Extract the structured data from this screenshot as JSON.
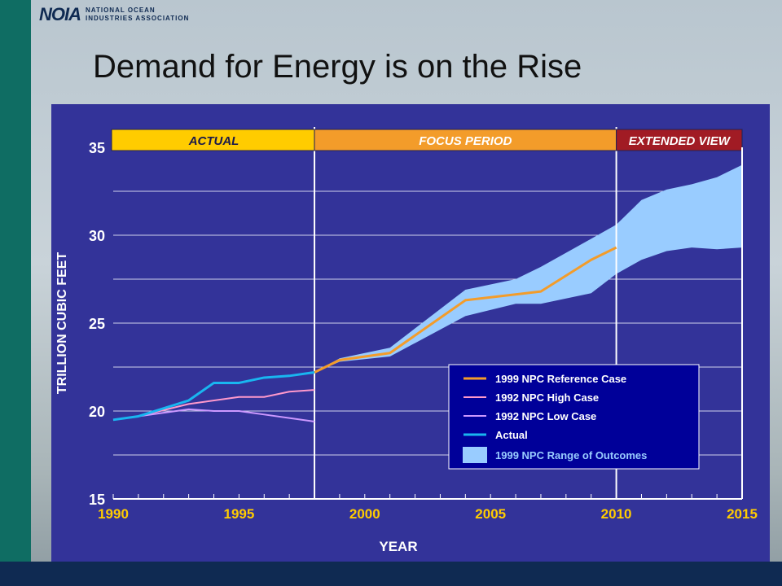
{
  "header": {
    "logo_mark": "NOIA",
    "logo_line1": "NATIONAL OCEAN",
    "logo_line2": "INDUSTRIES ASSOCIATION"
  },
  "slide": {
    "title": "Demand for Energy is on the Rise"
  },
  "chart_data": {
    "type": "line",
    "xlabel": "YEAR",
    "ylabel": "TRILLION CUBIC FEET",
    "xlim": [
      1990,
      2015
    ],
    "ylim": [
      15,
      35
    ],
    "x_ticks": [
      1990,
      1995,
      2000,
      2005,
      2010,
      2015
    ],
    "y_ticks": [
      15,
      20,
      25,
      30,
      35
    ],
    "grid": "horizontal",
    "periods": [
      {
        "label": "ACTUAL",
        "start": 1990,
        "end": 1998,
        "color": "#ffcc00",
        "text_color": "#1a1a4a"
      },
      {
        "label": "FOCUS PERIOD",
        "start": 1998,
        "end": 2010,
        "color": "#f39c2a",
        "text_color": "#ffffff"
      },
      {
        "label": "EXTENDED VIEW",
        "start": 2010,
        "end": 2015,
        "color": "#a11b24",
        "text_color": "#ffffff"
      }
    ],
    "range": {
      "name": "1999 NPC Range of Outcomes",
      "color": "#99ccff",
      "x": [
        1998,
        1999,
        2001,
        2004,
        2006,
        2007,
        2009,
        2010,
        2011,
        2012,
        2013,
        2014,
        2015
      ],
      "upper": [
        22.2,
        23.0,
        23.6,
        26.9,
        27.5,
        28.2,
        29.8,
        30.6,
        32.0,
        32.6,
        32.9,
        33.3,
        34.0
      ],
      "lower": [
        22.2,
        22.8,
        23.1,
        25.4,
        26.1,
        26.1,
        26.7,
        27.8,
        28.6,
        29.1,
        29.3,
        29.2,
        29.3
      ]
    },
    "series": [
      {
        "name": "1999 NPC Reference Case",
        "color": "#f39c2a",
        "x": [
          1998,
          1999,
          2001,
          2003,
          2004,
          2007,
          2009,
          2010
        ],
        "y": [
          22.2,
          22.9,
          23.3,
          25.3,
          26.3,
          26.8,
          28.6,
          29.3
        ]
      },
      {
        "name": "1992 NPC High Case",
        "color": "#ff99cc",
        "x": [
          1990,
          1991,
          1993,
          1995,
          1996,
          1997,
          1998
        ],
        "y": [
          19.5,
          19.7,
          20.4,
          20.8,
          20.8,
          21.1,
          21.2
        ]
      },
      {
        "name": "1992 NPC Low Case",
        "color": "#cc99ff",
        "x": [
          1990,
          1991,
          1993,
          1994,
          1995,
          1996,
          1997,
          1998
        ],
        "y": [
          19.5,
          19.7,
          20.1,
          20.0,
          20.0,
          19.8,
          19.6,
          19.4
        ]
      },
      {
        "name": "Actual",
        "color": "#19b6f0",
        "x": [
          1990,
          1991,
          1993,
          1994,
          1995,
          1996,
          1997,
          1998
        ],
        "y": [
          19.5,
          19.7,
          20.6,
          21.6,
          21.6,
          21.9,
          22.0,
          22.2
        ]
      }
    ]
  }
}
